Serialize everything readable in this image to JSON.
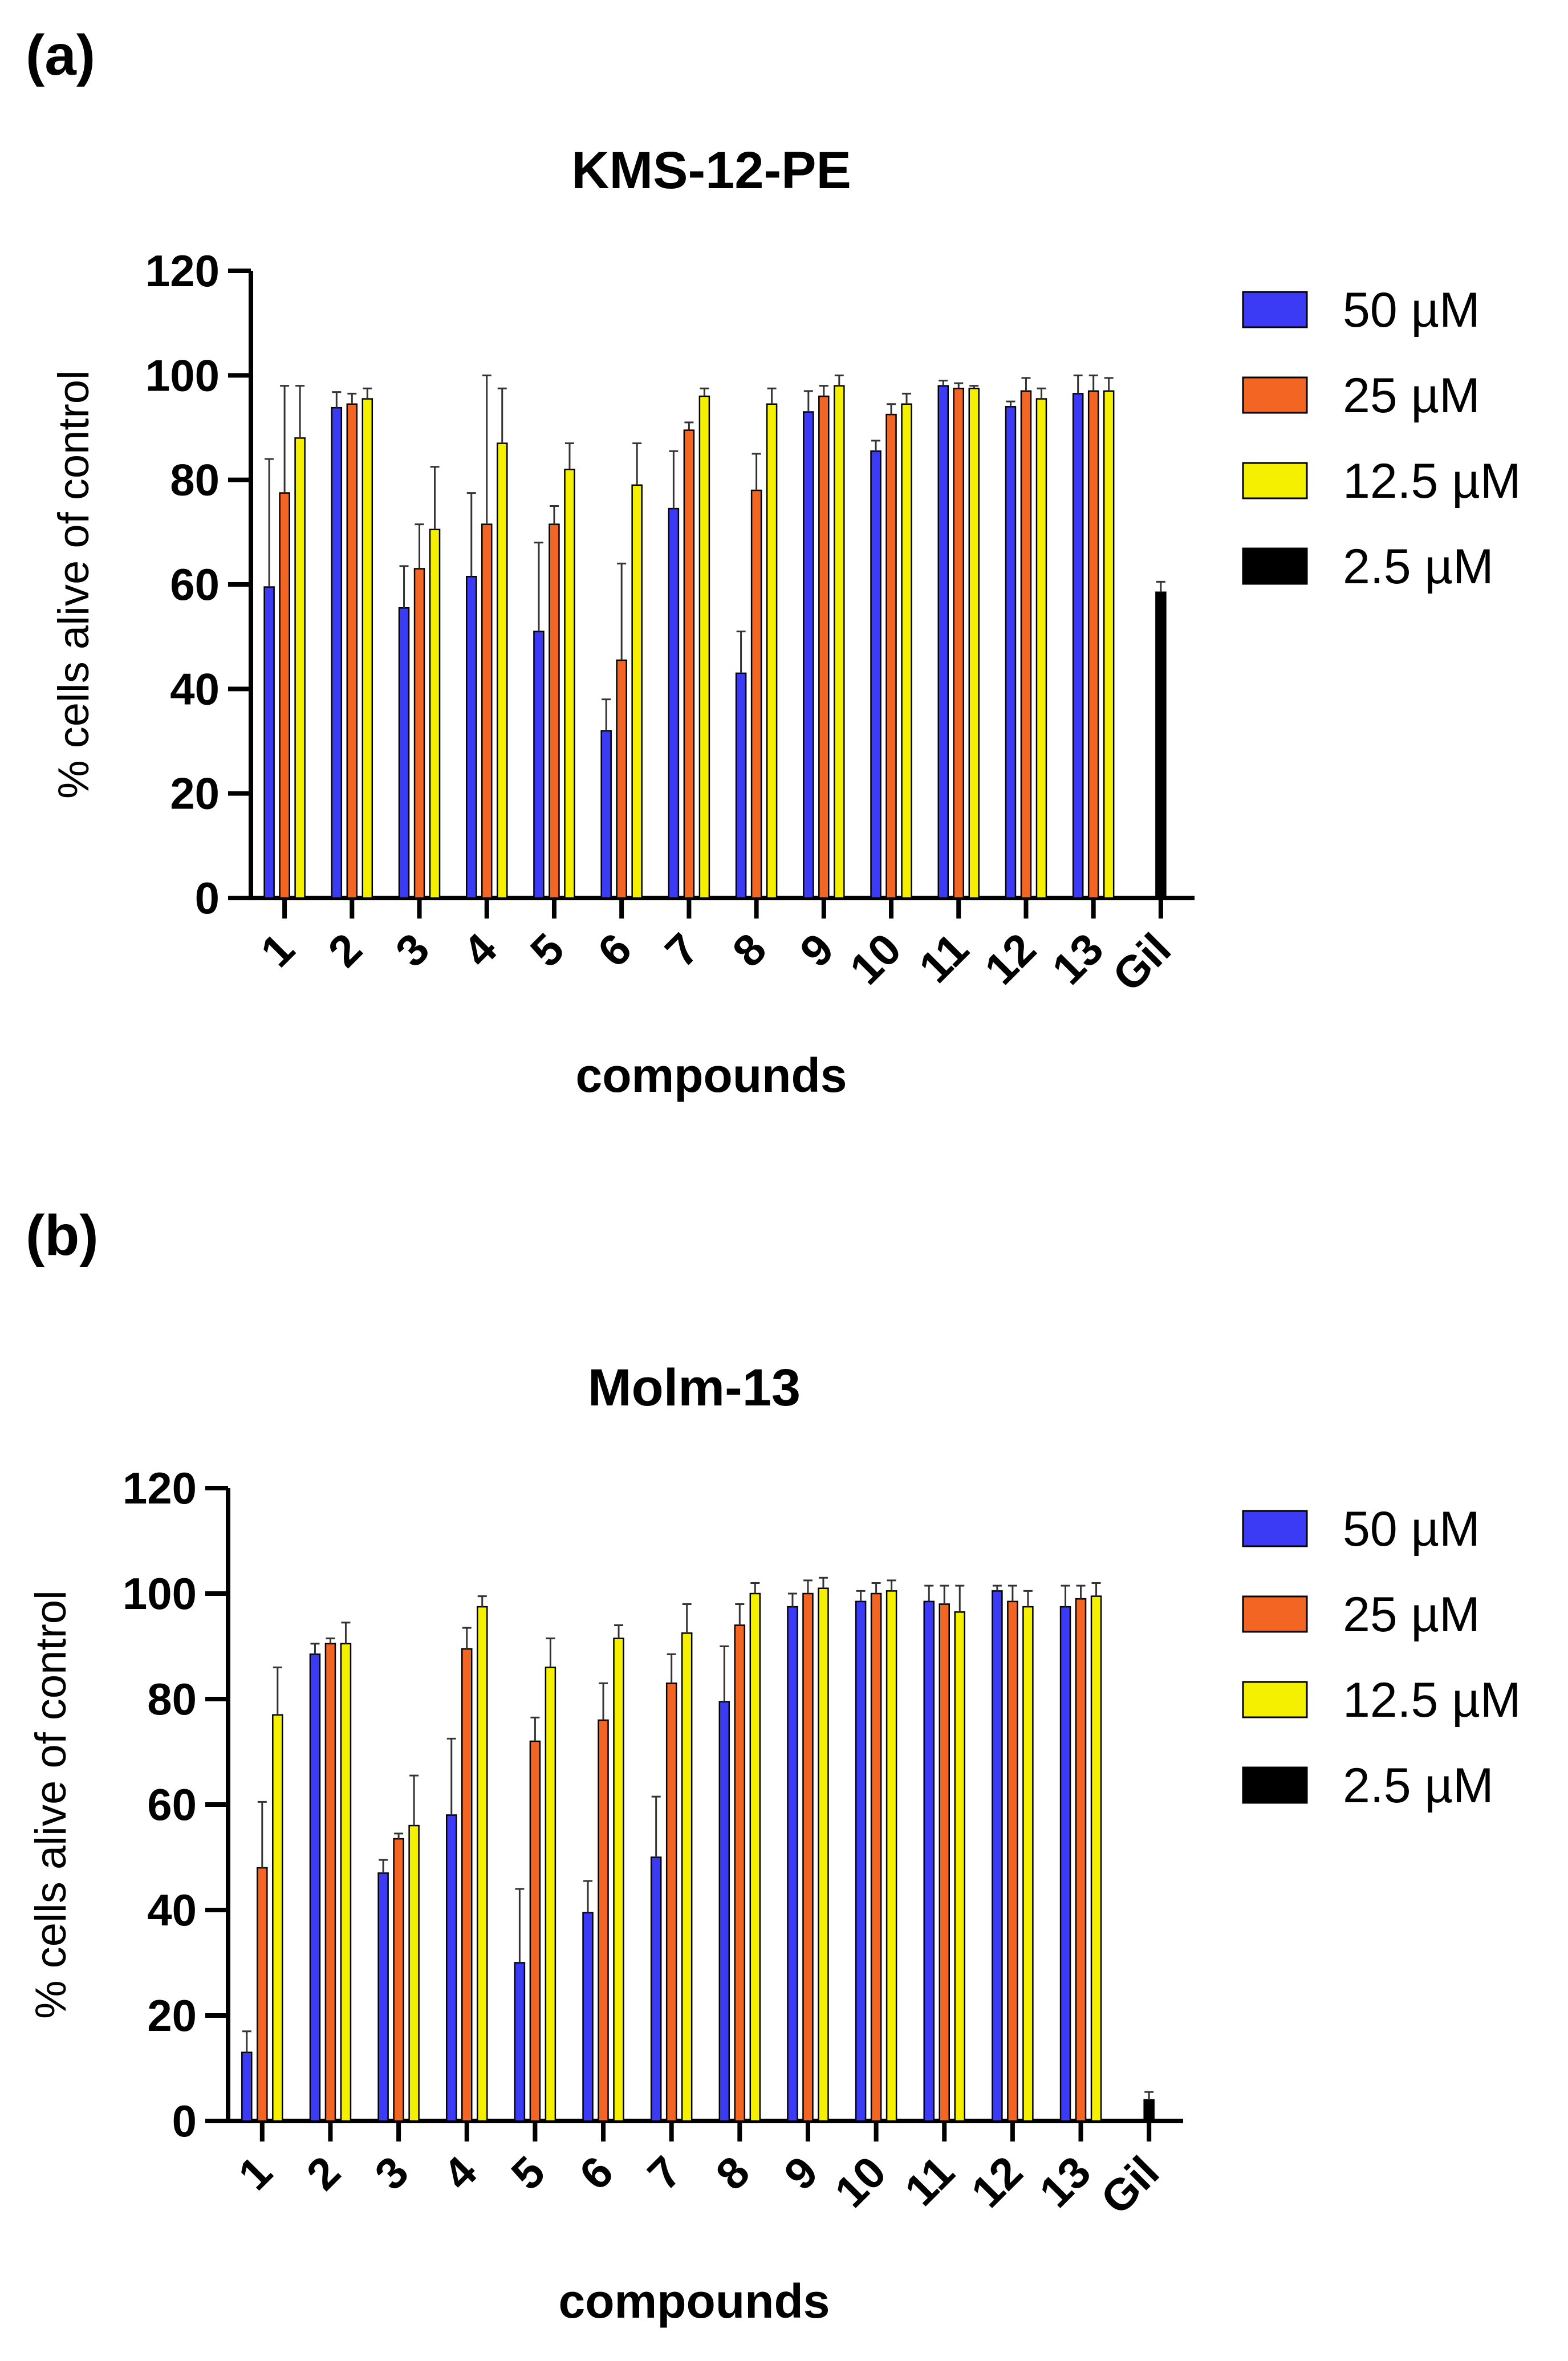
{
  "figure": {
    "colors": {
      "axis": "#000000",
      "error": "#333333",
      "edge": "#000000"
    }
  },
  "chart_data": [
    {
      "type": "bar",
      "panel_label": "(a)",
      "title": "KMS-12-PE",
      "xlabel": "compounds",
      "ylabel": "% cells alive of control",
      "ylim": [
        0,
        120
      ],
      "yticks": [
        0,
        20,
        40,
        60,
        80,
        100,
        120
      ],
      "categories": [
        "1",
        "2",
        "3",
        "4",
        "5",
        "6",
        "7",
        "8",
        "9",
        "10",
        "11",
        "12",
        "13",
        "Gil"
      ],
      "legend_position": "right",
      "series": [
        {
          "name": "50 µM",
          "color": "#3b3bf5",
          "values": [
            59.5,
            93.8,
            55.5,
            61.5,
            51,
            32,
            74.5,
            43,
            93,
            85.5,
            98,
            94,
            96.5,
            null
          ],
          "errors": [
            24.5,
            3,
            8,
            16,
            17,
            6,
            11,
            8,
            4,
            2,
            1,
            1,
            3.5,
            null
          ]
        },
        {
          "name": "25 µM",
          "color": "#f26522",
          "values": [
            77.5,
            94.5,
            63,
            71.5,
            71.5,
            45.5,
            89.5,
            78,
            96,
            92.5,
            97.5,
            97,
            97,
            null
          ],
          "errors": [
            20.5,
            2,
            8.5,
            28.5,
            3.5,
            18.5,
            1.5,
            7,
            2,
            2,
            1,
            2.5,
            3,
            null
          ]
        },
        {
          "name": "12.5 µM",
          "color": "#f5f000",
          "values": [
            88,
            95.5,
            70.5,
            87,
            82,
            79,
            96,
            94.5,
            98,
            94.5,
            97.5,
            95.5,
            97,
            null
          ],
          "errors": [
            10,
            2,
            12,
            10.5,
            5,
            8,
            1.5,
            3,
            2,
            2,
            0.5,
            2,
            2.5,
            null
          ]
        },
        {
          "name": "2.5 µM",
          "color": "#000000",
          "values": [
            null,
            null,
            null,
            null,
            null,
            null,
            null,
            null,
            null,
            null,
            null,
            null,
            null,
            58.5
          ],
          "errors": [
            null,
            null,
            null,
            null,
            null,
            null,
            null,
            null,
            null,
            null,
            null,
            null,
            null,
            2
          ]
        }
      ]
    },
    {
      "type": "bar",
      "panel_label": "(b)",
      "title": "Molm-13",
      "xlabel": "compounds",
      "ylabel": "% cells alive of control",
      "ylim": [
        0,
        120
      ],
      "yticks": [
        0,
        20,
        40,
        60,
        80,
        100,
        120
      ],
      "categories": [
        "1",
        "2",
        "3",
        "4",
        "5",
        "6",
        "7",
        "8",
        "9",
        "10",
        "11",
        "12",
        "13",
        "Gil"
      ],
      "legend_position": "right",
      "series": [
        {
          "name": "50 µM",
          "color": "#3b3bf5",
          "values": [
            13,
            88.5,
            47,
            58,
            30,
            39.5,
            50,
            79.5,
            97.5,
            98.5,
            98.5,
            100.5,
            97.5,
            null
          ],
          "errors": [
            4,
            2,
            2.5,
            14.5,
            14,
            6,
            11.5,
            10.5,
            2.5,
            2,
            3,
            1,
            4,
            null
          ]
        },
        {
          "name": "25 µM",
          "color": "#f26522",
          "values": [
            48,
            90.5,
            53.5,
            89.5,
            72,
            76,
            83,
            94,
            100,
            100,
            98,
            98.5,
            99,
            null
          ],
          "errors": [
            12.5,
            1,
            1,
            4,
            4.5,
            7,
            5.5,
            4,
            2.5,
            2,
            3.5,
            3,
            2.5,
            null
          ]
        },
        {
          "name": "12.5 µM",
          "color": "#f5f000",
          "values": [
            77,
            90.5,
            56,
            97.5,
            86,
            91.5,
            92.5,
            100,
            101,
            100.5,
            96.5,
            97.5,
            99.5,
            null
          ],
          "errors": [
            9,
            4,
            9.5,
            2,
            5.5,
            2.5,
            5.5,
            2,
            2,
            2,
            5,
            3,
            2.5,
            null
          ]
        },
        {
          "name": "2.5 µM",
          "color": "#000000",
          "values": [
            null,
            null,
            null,
            null,
            null,
            null,
            null,
            null,
            null,
            null,
            null,
            null,
            null,
            4
          ],
          "errors": [
            null,
            null,
            null,
            null,
            null,
            null,
            null,
            null,
            null,
            null,
            null,
            null,
            null,
            1.5
          ]
        }
      ]
    }
  ]
}
